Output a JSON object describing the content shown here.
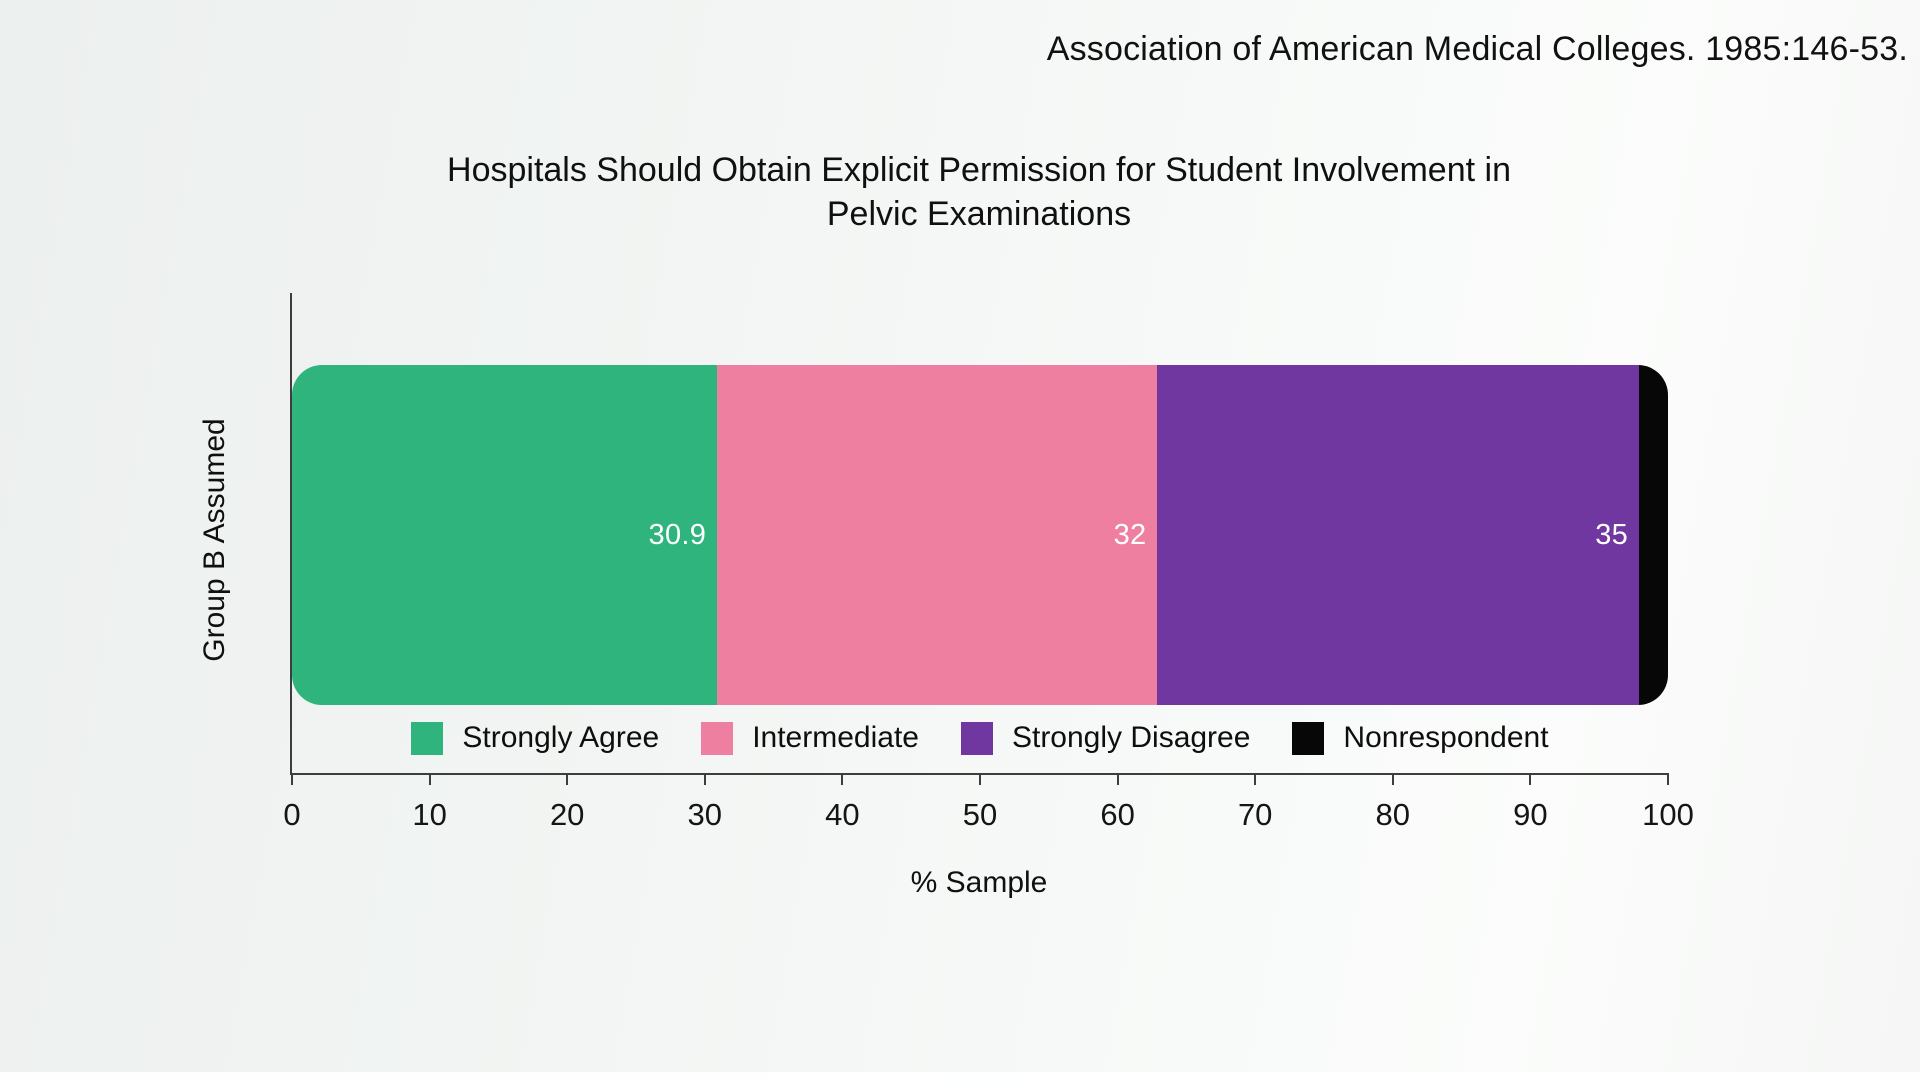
{
  "page": {
    "source_citation": "Association of American Medical Colleges. 1985:146-53."
  },
  "chart_data": {
    "type": "bar",
    "stacked": true,
    "orientation": "horizontal",
    "title": "Hospitals Should Obtain Explicit Permission for Student Involvement in Pelvic Examinations",
    "categories": [
      "Group B Assumed"
    ],
    "series": [
      {
        "name": "Strongly Agree",
        "value": 30.9,
        "label": "30.9",
        "color": "#2eb47c"
      },
      {
        "name": "Intermediate",
        "value": 32,
        "label": "32",
        "color": "#ee7fa1"
      },
      {
        "name": "Strongly Disagree",
        "value": 35,
        "label": "35",
        "color": "#7137a0"
      },
      {
        "name": "Nonrespondent",
        "value": 2.1,
        "label": "",
        "color": "#070707"
      }
    ],
    "xlabel": "% Sample",
    "ylabel": "Group B Assumed",
    "xlim": [
      0,
      100
    ],
    "xticks": [
      0,
      10,
      20,
      30,
      40,
      50,
      60,
      70,
      80,
      90,
      100
    ],
    "grid": false,
    "legend_position": "bottom-inside"
  },
  "colors": {
    "background_left": "#ecf0ee",
    "background_right": "#fbfcfb",
    "axis": "#3d3d3d",
    "text": "#141414",
    "bar_value_text": "#ffffff"
  }
}
